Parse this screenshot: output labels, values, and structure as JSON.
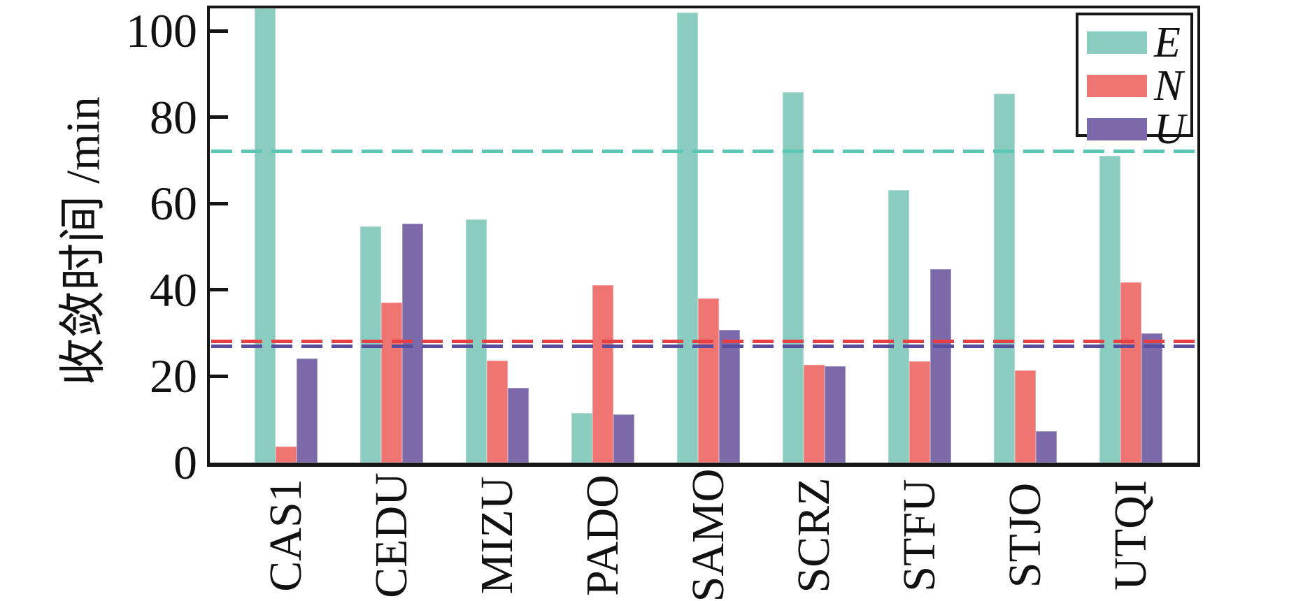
{
  "chart_data": {
    "type": "bar",
    "title": "",
    "ylabel": "收敛时间 /min",
    "xlabel": "",
    "categories": [
      "CAS1",
      "CEDU",
      "MIZU",
      "PADO",
      "SAMO",
      "SCRZ",
      "STFU",
      "STJO",
      "UTQI"
    ],
    "series": [
      {
        "name": "E",
        "color": "#8accbf",
        "values": [
          105.2,
          54.7,
          56.4,
          11.5,
          104.2,
          85.8,
          63.1,
          85.4,
          71.0
        ]
      },
      {
        "name": "N",
        "color": "#ee7572",
        "values": [
          3.7,
          37.0,
          23.6,
          41.1,
          38.0,
          22.6,
          23.5,
          21.4,
          41.7
        ]
      },
      {
        "name": "U",
        "color": "#7b69aa",
        "values": [
          24.1,
          55.4,
          17.3,
          11.2,
          30.7,
          22.4,
          44.8,
          7.3,
          29.9
        ]
      }
    ],
    "mean_lines": [
      {
        "series": "E",
        "value": 72.2,
        "color": "#5cc6b4"
      },
      {
        "series": "N",
        "value": 28.2,
        "color": "#e63f44"
      },
      {
        "series": "U",
        "value": 27.1,
        "color": "#584da1"
      }
    ],
    "ylim": [
      0,
      105.2
    ],
    "yticks": [
      0,
      20,
      40,
      60,
      80,
      100
    ],
    "legend": {
      "position": "top-right",
      "entries": [
        "E",
        "N",
        "U"
      ]
    },
    "grid": false,
    "notes": "CAS1 E bar reaches the top axis line (clipped at ~105)"
  }
}
